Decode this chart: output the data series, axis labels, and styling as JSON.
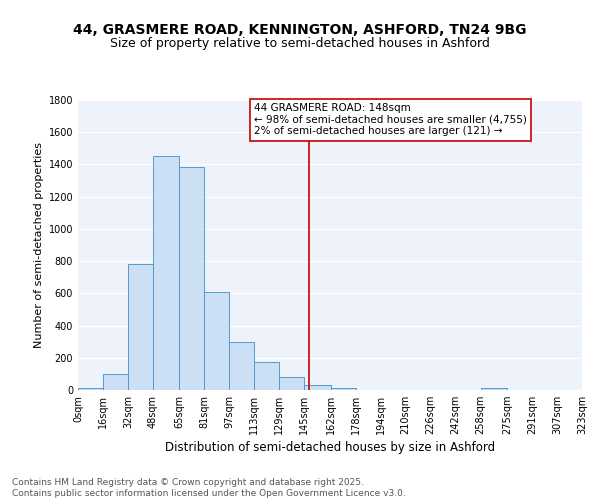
{
  "title1": "44, GRASMERE ROAD, KENNINGTON, ASHFORD, TN24 9BG",
  "title2": "Size of property relative to semi-detached houses in Ashford",
  "xlabel": "Distribution of semi-detached houses by size in Ashford",
  "ylabel": "Number of semi-detached properties",
  "bin_edges": [
    0,
    16,
    32,
    48,
    65,
    81,
    97,
    113,
    129,
    145,
    162,
    178,
    194,
    210,
    226,
    242,
    258,
    275,
    291,
    307,
    323
  ],
  "bin_counts": [
    10,
    100,
    780,
    1450,
    1385,
    610,
    295,
    175,
    80,
    30,
    15,
    0,
    0,
    0,
    0,
    0,
    10,
    0,
    0,
    0
  ],
  "bar_facecolor": "#cce0f5",
  "bar_edgecolor": "#5599cc",
  "vline_color": "#cc0000",
  "vline_x": 148,
  "annotation_line1": "44 GRASMERE ROAD: 148sqm",
  "annotation_line2": "← 98% of semi-detached houses are smaller (4,755)",
  "annotation_line3": "2% of semi-detached houses are larger (121) →",
  "annotation_box_color": "#cc0000",
  "ylim": [
    0,
    1800
  ],
  "yticks": [
    0,
    200,
    400,
    600,
    800,
    1000,
    1200,
    1400,
    1600,
    1800
  ],
  "xtick_labels": [
    "0sqm",
    "16sqm",
    "32sqm",
    "48sqm",
    "65sqm",
    "81sqm",
    "97sqm",
    "113sqm",
    "129sqm",
    "145sqm",
    "162sqm",
    "178sqm",
    "194sqm",
    "210sqm",
    "226sqm",
    "242sqm",
    "258sqm",
    "275sqm",
    "291sqm",
    "307sqm",
    "323sqm"
  ],
  "background_color": "#eef2fb",
  "grid_color": "#ffffff",
  "footer_text": "Contains HM Land Registry data © Crown copyright and database right 2025.\nContains public sector information licensed under the Open Government Licence v3.0.",
  "title1_fontsize": 10,
  "title2_fontsize": 9,
  "xlabel_fontsize": 8.5,
  "ylabel_fontsize": 8,
  "tick_fontsize": 7,
  "annotation_fontsize": 7.5,
  "footer_fontsize": 6.5
}
